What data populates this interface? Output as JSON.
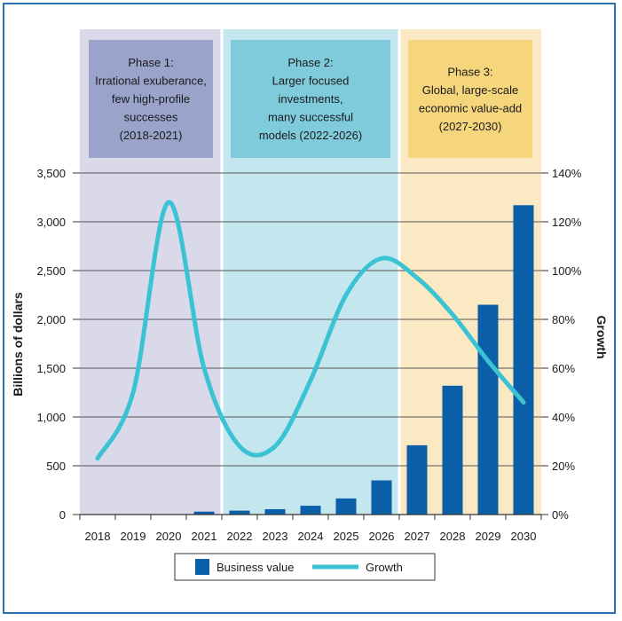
{
  "chart_data": {
    "type": "bar+line",
    "categories": [
      "2018",
      "2019",
      "2020",
      "2021",
      "2022",
      "2023",
      "2024",
      "2025",
      "2026",
      "2027",
      "2028",
      "2029",
      "2030"
    ],
    "series": [
      {
        "name": "Business value",
        "type": "bar",
        "axis": "left",
        "values": [
          0,
          0,
          0,
          30,
          40,
          55,
          90,
          165,
          350,
          710,
          1320,
          2150,
          3170
        ]
      },
      {
        "name": "Growth",
        "type": "line",
        "axis": "right",
        "unit": "%",
        "values": [
          23,
          50,
          128,
          60,
          28,
          28,
          55,
          90,
          105,
          97,
          82,
          63,
          46
        ]
      }
    ],
    "ylabel": "Billions of dollars",
    "y2label": "Growth",
    "ylim": [
      0,
      3500
    ],
    "y2lim": [
      0,
      140
    ],
    "yticks": [
      "0",
      "500",
      "1,000",
      "1,500",
      "2,000",
      "2,500",
      "3,000",
      "3,500"
    ],
    "y2ticks": [
      "0%",
      "20%",
      "40%",
      "60%",
      "80%",
      "100%",
      "120%",
      "140%"
    ],
    "grid": true,
    "legend": "bottom-center",
    "phases": [
      {
        "lines": [
          "Phase 1:",
          "Irrational exuberance,",
          "few high-profile",
          "successes",
          "(2018-2021)"
        ],
        "start": "2018",
        "end": "2021",
        "background": "#d9d9ea",
        "box": "#9aa3c9"
      },
      {
        "lines": [
          "Phase 2:",
          "Larger focused",
          "investments,",
          "many successful",
          "models (2022-2026)"
        ],
        "start": "2022",
        "end": "2026",
        "background": "#c4e6ee",
        "box": "#7fcbdb"
      },
      {
        "lines": [
          "Phase 3:",
          "Global, large-scale",
          "economic value-add",
          "(2027-2030)"
        ],
        "start": "2027",
        "end": "2030",
        "background": "#fbe9c4",
        "box": "#f5d67c"
      }
    ],
    "colors": {
      "bar": "#0b5ea8",
      "line": "#3cc3d3",
      "grid": "#555555",
      "frame": "#2e74b5"
    }
  }
}
